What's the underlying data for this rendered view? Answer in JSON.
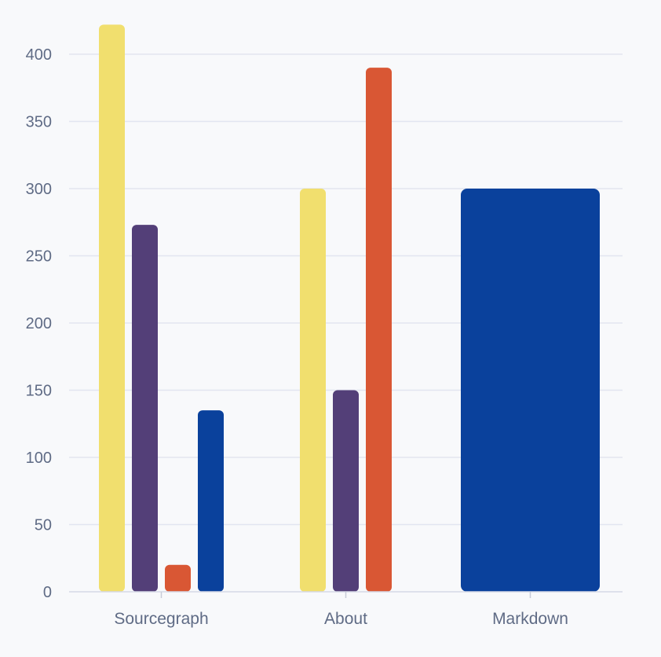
{
  "chart_data": {
    "type": "bar",
    "categories": [
      "Sourcegraph",
      "About",
      "Markdown"
    ],
    "series": [
      {
        "color": "#f1df6e",
        "values": [
          422,
          300,
          null
        ]
      },
      {
        "color": "#533f78",
        "values": [
          273,
          150,
          null
        ]
      },
      {
        "color": "#d95734",
        "values": [
          20,
          390,
          null
        ]
      },
      {
        "color": "#0a419c",
        "values": [
          135,
          null,
          300
        ]
      }
    ],
    "yticks": [
      0,
      50,
      100,
      150,
      200,
      250,
      300,
      350,
      400
    ],
    "ylim": [
      0,
      425
    ],
    "grid": true,
    "legend": "none"
  }
}
